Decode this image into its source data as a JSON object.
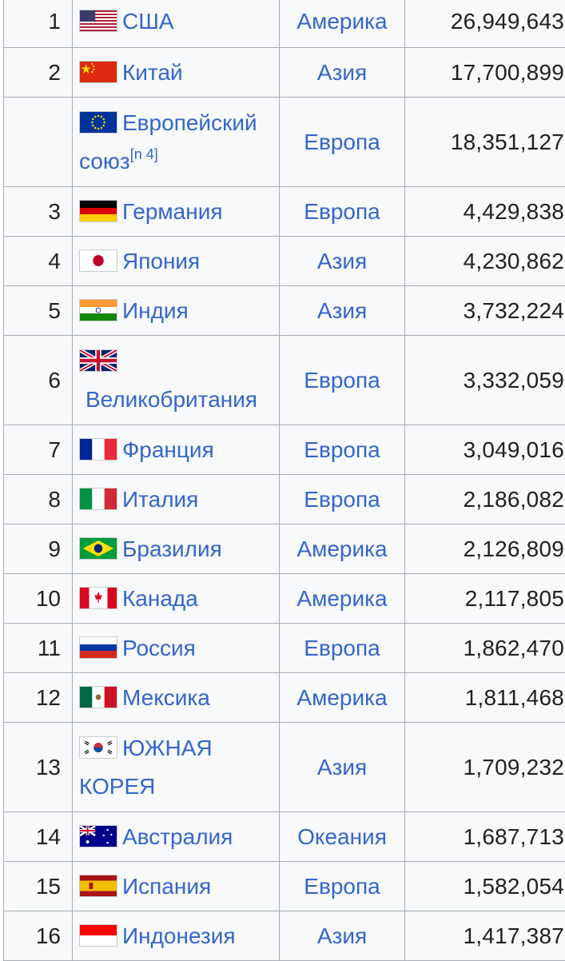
{
  "table": {
    "rows": [
      {
        "rank": "1",
        "country": "США",
        "flag": "usa-flag-icon",
        "region": "Америка",
        "gdp": "26,949,643"
      },
      {
        "rank": "2",
        "country": "Китай",
        "flag": "china-flag-icon",
        "region": "Азия",
        "gdp": "17,700,899"
      },
      {
        "rank": "",
        "country_line1": "Европейский",
        "country_line2": "союз",
        "note": "[n 4]",
        "flag": "eu-flag-icon",
        "region": "Европа",
        "gdp": "18,351,127"
      },
      {
        "rank": "3",
        "country": "Германия",
        "flag": "germany-flag-icon",
        "region": "Европа",
        "gdp": "4,429,838"
      },
      {
        "rank": "4",
        "country": "Япония",
        "flag": "japan-flag-icon",
        "region": "Азия",
        "gdp": "4,230,862"
      },
      {
        "rank": "5",
        "country": "Индия",
        "flag": "india-flag-icon",
        "region": "Азия",
        "gdp": "3,732,224"
      },
      {
        "rank": "6",
        "country": "Великобритания",
        "flag": "uk-flag-icon",
        "region": "Европа",
        "gdp": "3,332,059"
      },
      {
        "rank": "7",
        "country": "Франция",
        "flag": "france-flag-icon",
        "region": "Европа",
        "gdp": "3,049,016"
      },
      {
        "rank": "8",
        "country": "Италия",
        "flag": "italy-flag-icon",
        "region": "Европа",
        "gdp": "2,186,082"
      },
      {
        "rank": "9",
        "country": "Бразилия",
        "flag": "brazil-flag-icon",
        "region": "Америка",
        "gdp": "2,126,809"
      },
      {
        "rank": "10",
        "country": "Канада",
        "flag": "canada-flag-icon",
        "region": "Америка",
        "gdp": "2,117,805"
      },
      {
        "rank": "11",
        "country": "Россия",
        "flag": "russia-flag-icon",
        "region": "Европа",
        "gdp": "1,862,470"
      },
      {
        "rank": "12",
        "country": "Мексика",
        "flag": "mexico-flag-icon",
        "region": "Америка",
        "gdp": "1,811,468"
      },
      {
        "rank": "13",
        "country_line1": "ЮЖНАЯ",
        "country_line2": "КОРЕЯ",
        "flag": "south-korea-flag-icon",
        "region": "Азия",
        "gdp": "1,709,232"
      },
      {
        "rank": "14",
        "country": "Австралия",
        "flag": "australia-flag-icon",
        "region": "Океания",
        "gdp": "1,687,713"
      },
      {
        "rank": "15",
        "country": "Испания",
        "flag": "spain-flag-icon",
        "region": "Европа",
        "gdp": "1,582,054"
      },
      {
        "rank": "16",
        "country": "Индонезия",
        "flag": "indonesia-flag-icon",
        "region": "Азия",
        "gdp": "1,417,387"
      }
    ]
  },
  "colors": {
    "link": "#3366cc",
    "cell_background": "#f8f9fa",
    "border": "#a9adb4",
    "text": "#202122"
  }
}
